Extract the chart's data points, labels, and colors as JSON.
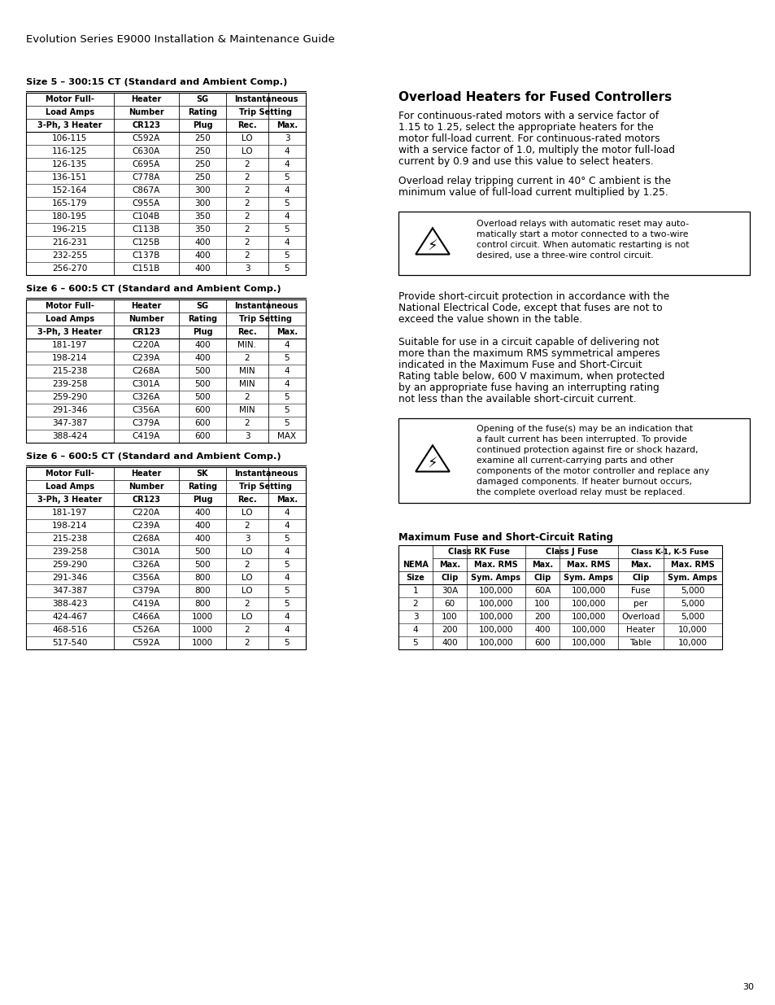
{
  "page_title": "Evolution Series E9000 Installation & Maintenance Guide",
  "page_number": "30",
  "background_color": "#ffffff",
  "table1_title": "Size 5 – 300:15 CT (Standard and Ambient Comp.)",
  "table1_sg": "SG",
  "table1_data": [
    [
      "106-115",
      "C592A",
      "250",
      "LO",
      "3"
    ],
    [
      "116-125",
      "C630A",
      "250",
      "LO",
      "4"
    ],
    [
      "126-135",
      "C695A",
      "250",
      "2",
      "4"
    ],
    [
      "136-151",
      "C778A",
      "250",
      "2",
      "5"
    ],
    [
      "152-164",
      "C867A",
      "300",
      "2",
      "4"
    ],
    [
      "165-179",
      "C955A",
      "300",
      "2",
      "5"
    ],
    [
      "180-195",
      "C104B",
      "350",
      "2",
      "4"
    ],
    [
      "196-215",
      "C113B",
      "350",
      "2",
      "5"
    ],
    [
      "216-231",
      "C125B",
      "400",
      "2",
      "4"
    ],
    [
      "232-255",
      "C137B",
      "400",
      "2",
      "5"
    ],
    [
      "256-270",
      "C151B",
      "400",
      "3",
      "5"
    ]
  ],
  "table2_title": "Size 6 – 600:5 CT (Standard and Ambient Comp.)",
  "table2_sg": "SG",
  "table2_data": [
    [
      "181-197",
      "C220A",
      "400",
      "MIN.",
      "4"
    ],
    [
      "198-214",
      "C239A",
      "400",
      "2",
      "5"
    ],
    [
      "215-238",
      "C268A",
      "500",
      "MIN",
      "4"
    ],
    [
      "239-258",
      "C301A",
      "500",
      "MIN",
      "4"
    ],
    [
      "259-290",
      "C326A",
      "500",
      "2",
      "5"
    ],
    [
      "291-346",
      "C356A",
      "600",
      "MIN",
      "5"
    ],
    [
      "347-387",
      "C379A",
      "600",
      "2",
      "5"
    ],
    [
      "388-424",
      "C419A",
      "600",
      "3",
      "MAX"
    ]
  ],
  "table3_title": "Size 6 – 600:5 CT (Standard and Ambient Comp.)",
  "table3_sg": "SK",
  "table3_data": [
    [
      "181-197",
      "C220A",
      "400",
      "LO",
      "4"
    ],
    [
      "198-214",
      "C239A",
      "400",
      "2",
      "4"
    ],
    [
      "215-238",
      "C268A",
      "400",
      "3",
      "5"
    ],
    [
      "239-258",
      "C301A",
      "500",
      "LO",
      "4"
    ],
    [
      "259-290",
      "C326A",
      "500",
      "2",
      "5"
    ],
    [
      "291-346",
      "C356A",
      "800",
      "LO",
      "4"
    ],
    [
      "347-387",
      "C379A",
      "800",
      "LO",
      "5"
    ],
    [
      "388-423",
      "C419A",
      "800",
      "2",
      "5"
    ],
    [
      "424-467",
      "C466A",
      "1000",
      "LO",
      "4"
    ],
    [
      "468-516",
      "C526A",
      "1000",
      "2",
      "4"
    ],
    [
      "517-540",
      "C592A",
      "1000",
      "2",
      "5"
    ]
  ],
  "right_title": "Overload Heaters for Fused Controllers",
  "right_para1": "For continuous-rated motors with a service factor of\n1.15 to 1.25, select the appropriate heaters for the\nmotor full-load current. For continuous-rated motors\nwith a service factor of 1.0, multiply the motor full-load\ncurrent by 0.9 and use this value to select heaters.",
  "right_para2": "Overload relay tripping current in 40° C ambient is the\nminimum value of full-load current multiplied by 1.25.",
  "right_warn1": "Overload relays with automatic reset may auto-\nmatically start a motor connected to a two-wire\ncontrol circuit. When automatic restarting is not\ndesired, use a three-wire control circuit.",
  "right_para3": "Provide short-circuit protection in accordance with the\nNational Electrical Code, except that fuses are not to\nexceed the value shown in the table.",
  "right_para4": "Suitable for use in a circuit capable of delivering not\nmore than the maximum RMS symmetrical amperes\nindicated in the Maximum Fuse and Short-Circuit\nRating table below, 600 V maximum, when protected\nby an appropriate fuse having an interrupting rating\nnot less than the available short-circuit current.",
  "right_warn2": "Opening of the fuse(s) may be an indication that\na fault current has been interrupted. To provide\ncontinued protection against fire or shock hazard,\nexamine all current-carrying parts and other\ncomponents of the motor controller and replace any\ndamaged components. If heater burnout occurs,\nthe complete overload relay must be replaced.",
  "fuse_title": "Maximum Fuse and Short-Circuit Rating",
  "fuse_data": [
    [
      "1",
      "30A",
      "100,000",
      "60A",
      "100,000",
      "Fuse",
      "5,000"
    ],
    [
      "2",
      "60",
      "100,000",
      "100",
      "100,000",
      "per",
      "5,000"
    ],
    [
      "3",
      "100",
      "100,000",
      "200",
      "100,000",
      "Overload",
      "5,000"
    ],
    [
      "4",
      "200",
      "100,000",
      "400",
      "100,000",
      "Heater",
      "10,000"
    ],
    [
      "5",
      "400",
      "100,000",
      "600",
      "100,000",
      "Table",
      "10,000"
    ]
  ]
}
